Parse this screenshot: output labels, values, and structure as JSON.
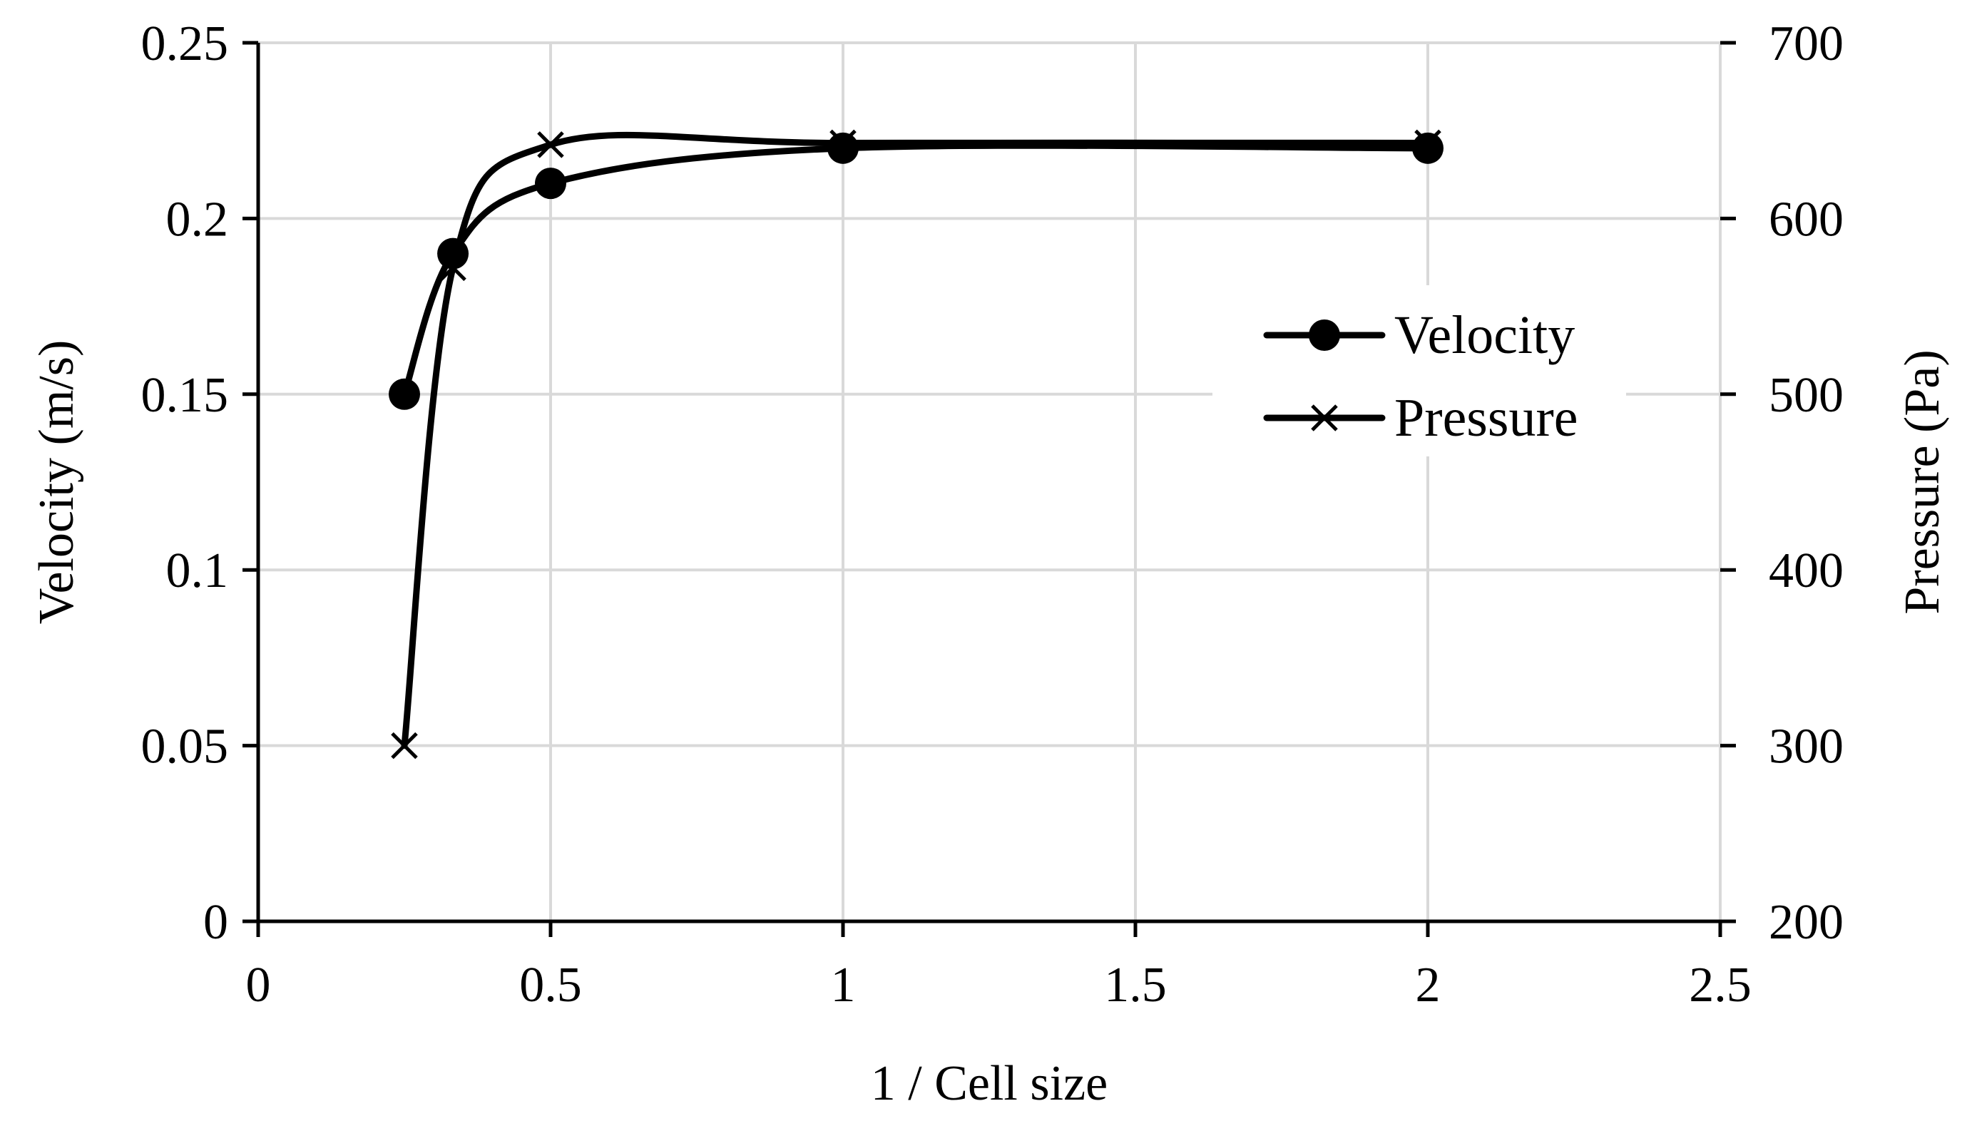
{
  "chart_data": {
    "type": "line",
    "title": "",
    "xlabel": "1 / Cell size",
    "ylabel": "Velocity (m/s)",
    "y2label": "Pressure (Pa)",
    "xlim": [
      0,
      2.5
    ],
    "ylim": [
      0,
      0.25
    ],
    "y2lim": [
      200,
      700
    ],
    "xticks": [
      "0",
      "0.5",
      "1",
      "1.5",
      "2",
      "2.5"
    ],
    "yticks": [
      "0",
      "0.05",
      "0.1",
      "0.15",
      "0.2",
      "0.25"
    ],
    "y2ticks": [
      "200",
      "300",
      "400",
      "500",
      "600",
      "700"
    ],
    "grid": true,
    "legend_position": "right",
    "series": [
      {
        "name": "Velocity",
        "axis": "left",
        "marker": "circle",
        "smooth": true,
        "color": "#000000",
        "x": [
          0.25,
          0.333,
          0.5,
          1,
          2
        ],
        "values": [
          0.15,
          0.19,
          0.21,
          0.22,
          0.22
        ]
      },
      {
        "name": "Pressure",
        "axis": "right",
        "marker": "x",
        "smooth": true,
        "color": "#000000",
        "x": [
          0.25,
          0.333,
          0.5,
          1,
          2
        ],
        "values": [
          300,
          572,
          642,
          643,
          643
        ]
      }
    ]
  }
}
